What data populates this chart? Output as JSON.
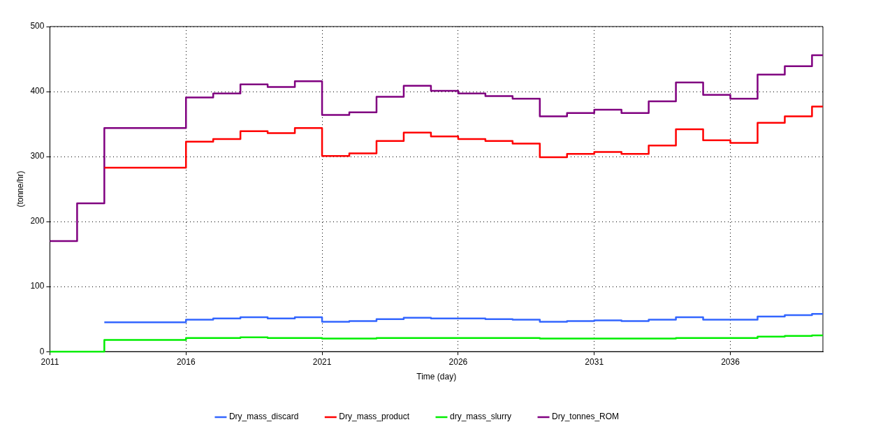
{
  "chart_data": {
    "type": "step",
    "xlabel": "Time (day)",
    "ylabel": "(tonne/hr)",
    "x": [
      2011,
      2012,
      2013,
      2014,
      2015,
      2016,
      2017,
      2018,
      2019,
      2020,
      2021,
      2022,
      2023,
      2024,
      2025,
      2026,
      2027,
      2028,
      2029,
      2030,
      2031,
      2032,
      2033,
      2034,
      2035,
      2036,
      2037,
      2038,
      2039,
      2039.4
    ],
    "series": [
      {
        "name": "Dry_mass_discard",
        "color": "#3366ff",
        "values": [
          null,
          null,
          45,
          45,
          45,
          49,
          51,
          53,
          51,
          53,
          46,
          47,
          50,
          52,
          51,
          51,
          50,
          49,
          46,
          47,
          48,
          47,
          49,
          53,
          49,
          49,
          54,
          56,
          58,
          58
        ]
      },
      {
        "name": "Dry_mass_product",
        "color": "#ff0000",
        "values": [
          null,
          null,
          283,
          283,
          283,
          323,
          327,
          339,
          336,
          344,
          301,
          305,
          324,
          337,
          331,
          327,
          324,
          320,
          299,
          304,
          307,
          304,
          317,
          342,
          325,
          321,
          352,
          362,
          377,
          377
        ]
      },
      {
        "name": "dry_mass_slurry",
        "color": "#00ee00",
        "values": [
          0,
          0,
          18,
          18,
          18,
          21,
          21,
          22,
          21,
          21,
          20,
          20,
          21,
          21,
          21,
          21,
          21,
          21,
          20,
          20,
          20,
          20,
          20,
          21,
          21,
          21,
          23,
          24,
          25,
          25
        ]
      },
      {
        "name": "Dry_tonnes_ROM",
        "color": "#800080",
        "values": [
          170,
          228,
          344,
          344,
          344,
          391,
          397,
          411,
          407,
          416,
          364,
          368,
          392,
          409,
          401,
          397,
          393,
          389,
          362,
          367,
          372,
          367,
          385,
          414,
          395,
          389,
          426,
          439,
          456,
          456
        ]
      }
    ],
    "xlim": [
      2011,
      2039.4
    ],
    "xticks": [
      2011,
      2016,
      2021,
      2026,
      2031,
      2036
    ],
    "ylim": [
      0,
      500
    ],
    "yticks": [
      0,
      100,
      200,
      300,
      400,
      500
    ],
    "grid": true,
    "legend": "bottom",
    "line_style": "solid",
    "marker": "none"
  }
}
